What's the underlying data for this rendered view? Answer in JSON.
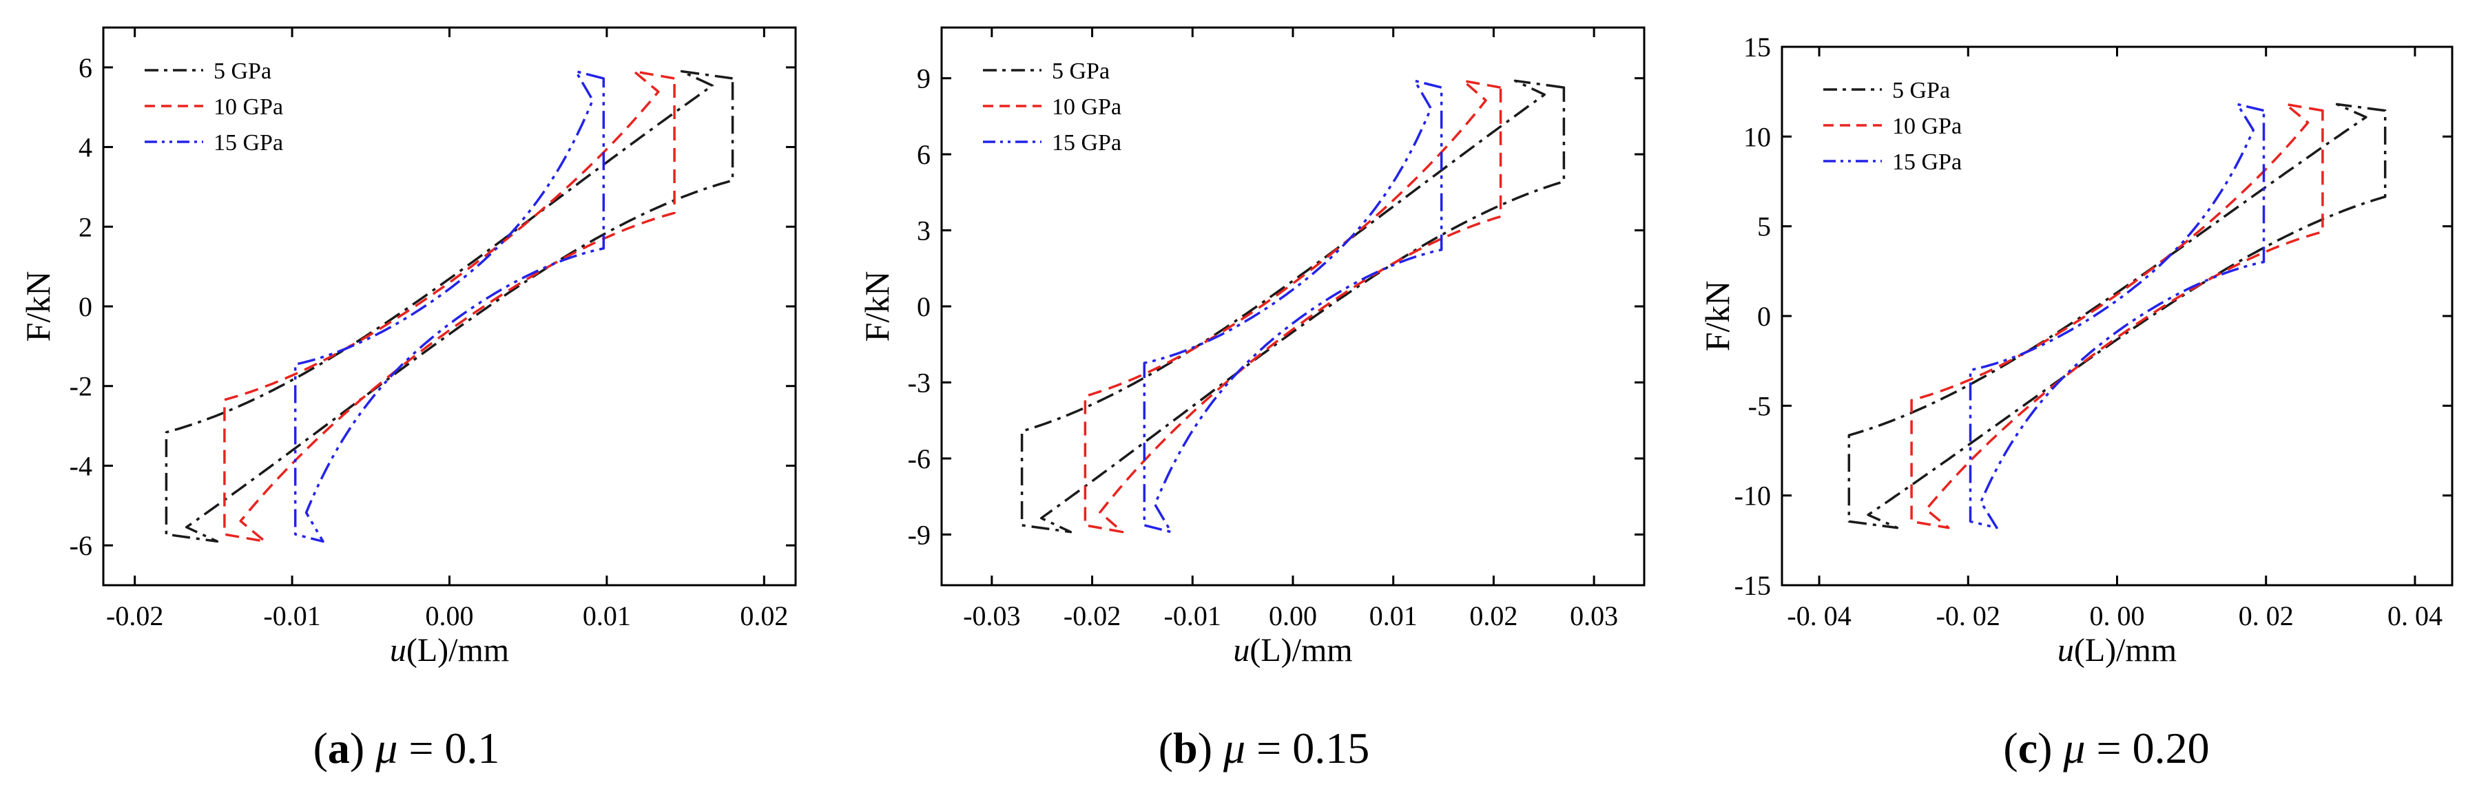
{
  "chart_data": [
    {
      "type": "line",
      "panel_label": "a",
      "caption_suffix": "= 0.1",
      "xlabel": "u(L)/mm",
      "ylabel": "F/kN",
      "xlim": [
        -0.022,
        0.022
      ],
      "ylim": [
        -7,
        7
      ],
      "xticks": [
        -0.02,
        -0.01,
        0.0,
        0.01,
        0.02
      ],
      "xticklabels": [
        "-0.02",
        "-0.01",
        "0.00",
        "0.01",
        "0.02"
      ],
      "yticks": [
        -6,
        -4,
        -2,
        0,
        2,
        4,
        6
      ],
      "yticklabels": [
        "-6",
        "-4",
        "-2",
        "0",
        "2",
        "4",
        "6"
      ],
      "grid": false,
      "legend_position": "top-left",
      "series": [
        {
          "name": "5 GPa",
          "color": "#1a1a1a",
          "dash": "dashdot",
          "umax": 0.018,
          "fmax": 5.9,
          "a": 4.2,
          "b": 0.85,
          "k": 2.6,
          "r": 0.14
        },
        {
          "name": "10 GPa",
          "color": "#e8241f",
          "dash": "dash",
          "umax": 0.0143,
          "fmax": 5.9,
          "a": 3.0,
          "b": 0.55,
          "k": 3.5,
          "r": 0.13
        },
        {
          "name": "15 GPa",
          "color": "#2323e8",
          "dash": "dashdotdot",
          "umax": 0.0098,
          "fmax": 5.9,
          "a": 1.9,
          "b": 0.4,
          "k": 4.6,
          "r": 0.13
        }
      ]
    },
    {
      "type": "line",
      "panel_label": "b",
      "caption_suffix": "= 0.15",
      "xlabel": "u(L)/mm",
      "ylabel": "F/kN",
      "xlim": [
        -0.035,
        0.035
      ],
      "ylim": [
        -11,
        11
      ],
      "xticks": [
        -0.03,
        -0.02,
        -0.01,
        0.0,
        0.01,
        0.02,
        0.03
      ],
      "xticklabels": [
        "-0.03",
        "-0.02",
        "-0.01",
        "0.00",
        "0.01",
        "0.02",
        "0.03"
      ],
      "yticks": [
        -9,
        -6,
        -3,
        0,
        3,
        6,
        9
      ],
      "yticklabels": [
        "-9",
        "-6",
        "-3",
        "0",
        "3",
        "6",
        "9"
      ],
      "grid": false,
      "legend_position": "top-left",
      "series": [
        {
          "name": "5 GPa",
          "color": "#1a1a1a",
          "dash": "dashdot",
          "umax": 0.027,
          "fmax": 8.9,
          "a": 6.4,
          "b": 1.2,
          "k": 2.6,
          "r": 0.14
        },
        {
          "name": "10 GPa",
          "color": "#e8241f",
          "dash": "dash",
          "umax": 0.0207,
          "fmax": 8.9,
          "a": 4.5,
          "b": 0.8,
          "k": 3.5,
          "r": 0.13
        },
        {
          "name": "15 GPa",
          "color": "#2323e8",
          "dash": "dashdotdot",
          "umax": 0.0148,
          "fmax": 8.9,
          "a": 2.9,
          "b": 0.6,
          "k": 4.6,
          "r": 0.13
        }
      ]
    },
    {
      "type": "line",
      "panel_label": "c",
      "caption_suffix": "= 0.20",
      "xlabel": "u(L)/mm",
      "ylabel": "F/kN",
      "xlim": [
        -0.045,
        0.045
      ],
      "ylim": [
        -15,
        15
      ],
      "xticks": [
        -0.04,
        -0.02,
        0.0,
        0.02,
        0.04
      ],
      "xticklabels": [
        "-0. 04",
        "-0. 02",
        "0. 00",
        "0. 02",
        "0. 04"
      ],
      "yticks": [
        -15,
        -10,
        -5,
        0,
        5,
        10,
        15
      ],
      "yticklabels": [
        "-15",
        "-10",
        "-5",
        "0",
        "5",
        "10",
        "15"
      ],
      "grid": false,
      "legend_position": "top-left",
      "series": [
        {
          "name": "5 GPa",
          "color": "#1a1a1a",
          "dash": "dashdot",
          "umax": 0.036,
          "fmax": 11.8,
          "a": 8.6,
          "b": 1.6,
          "k": 2.6,
          "r": 0.14
        },
        {
          "name": "10 GPa",
          "color": "#e8241f",
          "dash": "dash",
          "umax": 0.0276,
          "fmax": 11.8,
          "a": 6.0,
          "b": 1.1,
          "k": 3.5,
          "r": 0.13
        },
        {
          "name": "15 GPa",
          "color": "#2323e8",
          "dash": "dashdotdot",
          "umax": 0.0197,
          "fmax": 11.8,
          "a": 3.9,
          "b": 0.8,
          "k": 4.6,
          "r": 0.13
        }
      ]
    }
  ]
}
